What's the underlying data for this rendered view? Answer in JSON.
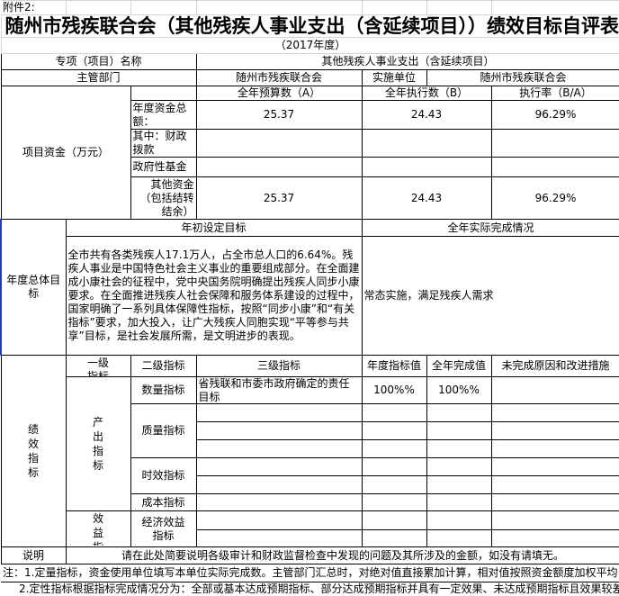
{
  "attachment": "附件2:",
  "title": "随州市残疾联合会（其他残疾人事业支出（含延续项目））绩效目标自评表",
  "year": "（2017年度）",
  "project_name_label": "专项（项目）名称",
  "project_name": "其他残疾人事业支出（含延续项目）",
  "dept_label": "主管部门",
  "dept": "随州市残疾联合会",
  "impl_label": "实施单位",
  "impl": "随州市残疾联合会",
  "funds": {
    "label": "项目资金（万元）",
    "headers": [
      "全年预算数（A）",
      "全年执行数（B）",
      "执行率（B/A）"
    ],
    "rows": [
      {
        "label": "年度资金总额：",
        "a": "25.37",
        "b": "24.43",
        "rate": "96.29%"
      },
      {
        "label": "其中：财政拨款",
        "a": "",
        "b": "",
        "rate": ""
      },
      {
        "label": "政府性基金",
        "a": "",
        "b": "",
        "rate": ""
      },
      {
        "label": "其他资金（包括结转结余）",
        "a": "25.37",
        "b": "24.43",
        "rate": "96.29%"
      }
    ]
  },
  "goal": {
    "label": "年度总体目标",
    "set_label": "年初设定目标",
    "actual_label": "全年实际完成情况",
    "set_text": "全市共有各类残疾人17.1万人，占全市总人口的6.64%。残疾人事业是中国特色社会主义事业的重要组成部分。在全面建成小康社会的征程中，党中央国务院明确提出残疾人同步小康要求。在全面推进残疾人社会保障和服务体系建设的过程中，国家明确了一系列具体保障性指标，按照“同步小康”和“有关指标”要求，加大投入，让广大残疾人同胞实现“平等参与共享”目标，是社会发展所需，是文明进步的表现。",
    "actual_text": "常态实施，满足残疾人需求"
  },
  "indicators": {
    "label": "绩效指标",
    "headers": [
      "一级指标",
      "二级指标",
      "三级指标",
      "年度指标值",
      "全年完成值",
      "未完成原因和改进措施"
    ],
    "output_label": "产出指标",
    "benefit_label": "效益指标",
    "quantity_label": "数量指标",
    "quality_label": "质量指标",
    "timeliness_label": "时效指标",
    "cost_label": "成本指标",
    "economic_label": "经济效益指标",
    "quantity_row": {
      "name": "省残联和市委市政府确定的责任目标",
      "target": "100%%",
      "actual": "100%%",
      "reason": ""
    }
  },
  "remark_label": "说明",
  "remark": "请在此处简要说明各级审计和财政监督检查中发现的问题及其所涉及的金额，如没有请填无。",
  "notes": [
    "注：1.定量指标，资金使用单位填写本单位实际完成数。主管部门汇总时，对绝对值直接累加计算，相对值按照资金额度加权平均计算。",
    "    2.定性指标根据指标完成情况分为：全部或基本达成预期指标、部分达成预期指标并具有一定效果、未达成预期指标且效果较差"
  ]
}
